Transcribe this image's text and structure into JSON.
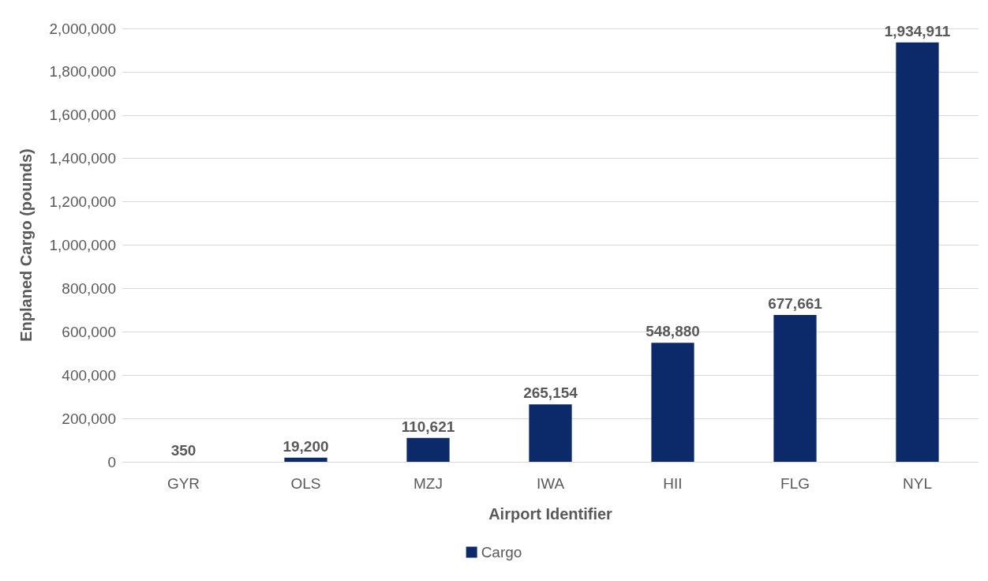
{
  "chart_data": {
    "type": "bar",
    "xlabel": "Airport Identifier",
    "ylabel": "Enplaned Cargo (pounds)",
    "categories": [
      "GYR",
      "OLS",
      "MZJ",
      "IWA",
      "HII",
      "FLG",
      "NYL"
    ],
    "series": [
      {
        "name": "Cargo",
        "color": "#0c2a6a",
        "values": [
          350,
          19200,
          110621,
          265154,
          548880,
          677661,
          1934911
        ],
        "value_labels": [
          "350",
          "19,200",
          "110,621",
          "265,154",
          "548,880",
          "677,661",
          "1,934,911"
        ]
      }
    ],
    "ylim": [
      0,
      2000000
    ],
    "yticks": [
      0,
      {
        "value": 200000,
        "label": "200,000"
      },
      {
        "value": 400000,
        "label": "400,000"
      },
      {
        "value": 600000,
        "label": "600,000"
      },
      {
        "value": 800000,
        "label": "800,000"
      },
      {
        "value": 1000000,
        "label": "1,000,000"
      },
      {
        "value": 1200000,
        "label": "1,200,000"
      },
      {
        "value": 1400000,
        "label": "1,400,000"
      },
      {
        "value": 1600000,
        "label": "1,600,000"
      },
      {
        "value": 1800000,
        "label": "1,800,000"
      },
      {
        "value": 2000000,
        "label": "2,000,000"
      }
    ],
    "grid": "y",
    "legend": "bottom"
  }
}
